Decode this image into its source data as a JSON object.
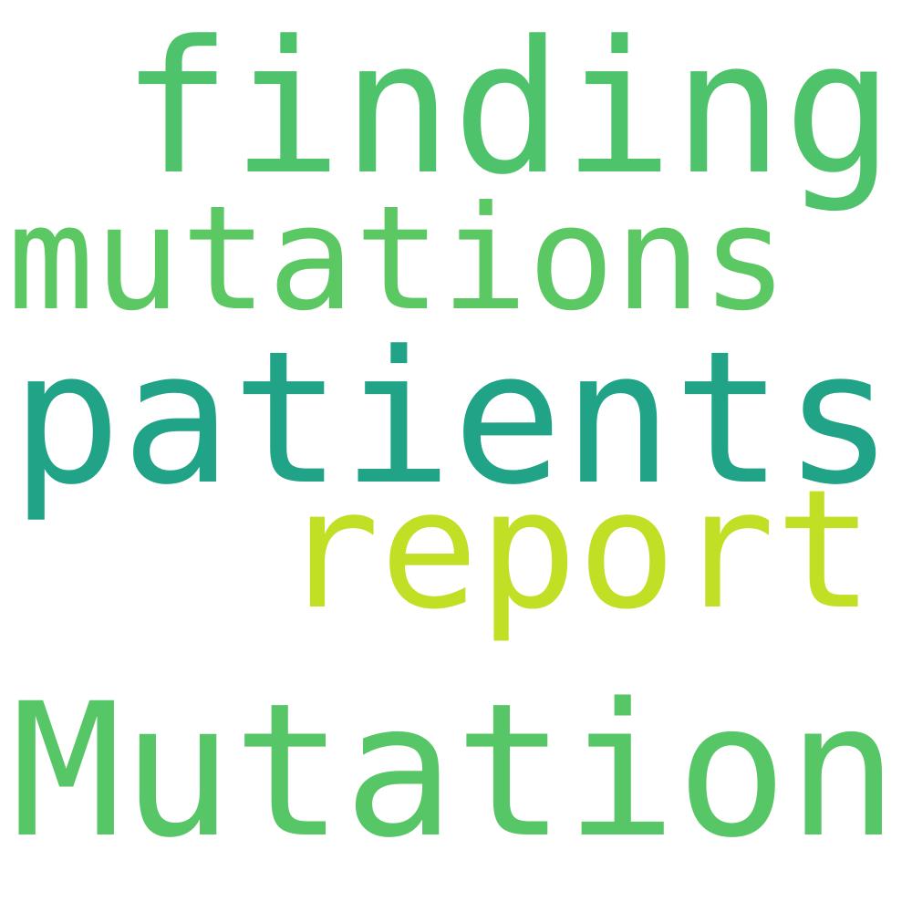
{
  "words": [
    {
      "text": "finding",
      "color": "#4fc36b"
    },
    {
      "text": "mutations",
      "color": "#5cc863"
    },
    {
      "text": "patients",
      "color": "#20a386"
    },
    {
      "text": "report",
      "color": "#c0df25"
    },
    {
      "text": "Mutation",
      "color": "#56c667"
    }
  ]
}
